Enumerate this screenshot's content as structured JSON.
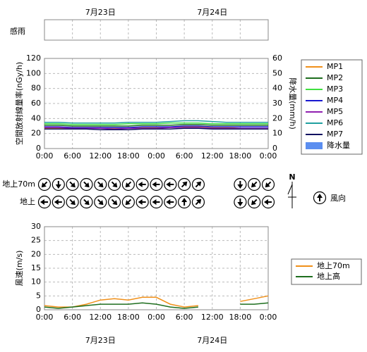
{
  "chart_data": [
    {
      "type": "timeline",
      "label": "感雨",
      "xlim": [
        0,
        48
      ],
      "xticks": [
        0,
        6,
        12,
        18,
        24,
        30,
        36,
        42,
        48
      ],
      "date_labels": [
        {
          "value": 12,
          "label": "7月23日"
        },
        {
          "value": 36,
          "label": "7月24日"
        }
      ]
    },
    {
      "type": "line",
      "ylabel": "空間放射線量率(nGy/h)",
      "y2label": "降水量(mm/h)",
      "xlim": [
        0,
        48
      ],
      "xticks": [
        {
          "value": 0,
          "label": "0:00"
        },
        {
          "value": 6,
          "label": "6:00"
        },
        {
          "value": 12,
          "label": "12:00"
        },
        {
          "value": 18,
          "label": "18:00"
        },
        {
          "value": 24,
          "label": "0:00"
        },
        {
          "value": 30,
          "label": "6:00"
        },
        {
          "value": 36,
          "label": "12:00"
        },
        {
          "value": 42,
          "label": "18:00"
        },
        {
          "value": 48,
          "label": "0:00"
        }
      ],
      "ylim": [
        0,
        120
      ],
      "yticks": [
        0,
        20,
        40,
        60,
        80,
        100,
        120
      ],
      "y2lim": [
        0,
        60
      ],
      "y2ticks": [
        0,
        10,
        20,
        30,
        40,
        50,
        60
      ],
      "grid": true,
      "x": [
        0,
        3,
        6,
        9,
        12,
        15,
        18,
        21,
        24,
        27,
        30,
        33,
        36,
        39,
        42,
        45,
        48
      ],
      "series": [
        {
          "name": "MP1",
          "color": "#f0901a",
          "values": [
            27,
            27,
            28,
            28,
            28,
            27,
            27,
            28,
            28,
            28,
            29,
            29,
            28,
            28,
            27,
            27,
            27
          ]
        },
        {
          "name": "MP2",
          "color": "#1e6e1e",
          "values": [
            31,
            31,
            30,
            30,
            30,
            30,
            30,
            31,
            31,
            31,
            32,
            32,
            31,
            31,
            31,
            31,
            31
          ]
        },
        {
          "name": "MP3",
          "color": "#40e040",
          "values": [
            33,
            33,
            32,
            32,
            32,
            32,
            33,
            33,
            33,
            34,
            34,
            34,
            33,
            33,
            33,
            33,
            33
          ]
        },
        {
          "name": "MP4",
          "color": "#1818d0",
          "values": [
            29,
            29,
            28,
            28,
            28,
            28,
            28,
            29,
            29,
            29,
            30,
            30,
            29,
            29,
            29,
            29,
            29
          ]
        },
        {
          "name": "MP5",
          "color": "#9020b0",
          "values": [
            28,
            28,
            27,
            27,
            27,
            26,
            27,
            27,
            27,
            28,
            28,
            28,
            27,
            27,
            27,
            27,
            27
          ]
        },
        {
          "name": "MP6",
          "color": "#20a0a0",
          "values": [
            35,
            35,
            34,
            34,
            34,
            34,
            35,
            35,
            35,
            36,
            37,
            37,
            36,
            35,
            35,
            35,
            35
          ]
        },
        {
          "name": "MP7",
          "color": "#101060",
          "values": [
            26,
            26,
            26,
            26,
            25,
            25,
            25,
            26,
            26,
            26,
            27,
            27,
            26,
            26,
            26,
            26,
            26
          ]
        },
        {
          "name": "降水量",
          "color": "#5b8ef0",
          "axis": "y2",
          "kind": "bar",
          "values": [
            0,
            0,
            0,
            0,
            0,
            0,
            0,
            0,
            0,
            0,
            0,
            0,
            0,
            0,
            0,
            0,
            0
          ]
        }
      ]
    },
    {
      "type": "wind_direction",
      "xlim": [
        0,
        48
      ],
      "x": [
        0,
        3,
        6,
        9,
        12,
        15,
        18,
        21,
        24,
        27,
        30,
        33,
        36,
        39,
        42,
        45,
        48
      ],
      "compass_label": "N",
      "legend": "風向",
      "series": [
        {
          "name": "地上70m",
          "values": [
            225,
            180,
            135,
            135,
            135,
            135,
            225,
            270,
            270,
            270,
            45,
            45,
            null,
            null,
            180,
            225,
            225
          ]
        },
        {
          "name": "地上",
          "values": [
            270,
            270,
            135,
            135,
            135,
            135,
            225,
            270,
            270,
            270,
            0,
            45,
            null,
            null,
            180,
            225,
            270
          ]
        }
      ]
    },
    {
      "type": "line",
      "ylabel": "風速(m/s)",
      "xlim": [
        0,
        48
      ],
      "xticks": [
        {
          "value": 0,
          "label": "0:00"
        },
        {
          "value": 6,
          "label": "6:00"
        },
        {
          "value": 12,
          "label": "12:00"
        },
        {
          "value": 18,
          "label": "18:00"
        },
        {
          "value": 24,
          "label": "0:00"
        },
        {
          "value": 30,
          "label": "6:00"
        },
        {
          "value": 36,
          "label": "12:00"
        },
        {
          "value": 42,
          "label": "18:00"
        },
        {
          "value": 48,
          "label": "0:00"
        }
      ],
      "ylim": [
        0,
        30
      ],
      "yticks": [
        0,
        5,
        10,
        15,
        20,
        25,
        30
      ],
      "grid": true,
      "x": [
        0,
        3,
        6,
        9,
        12,
        15,
        18,
        21,
        24,
        27,
        30,
        33,
        36,
        39,
        42,
        45,
        48
      ],
      "series": [
        {
          "name": "地上70m",
          "color": "#f0901a",
          "values": [
            1.5,
            1,
            1,
            2,
            3.5,
            4,
            3.5,
            4.5,
            4.5,
            2,
            1,
            1.5,
            null,
            null,
            3,
            4,
            5
          ]
        },
        {
          "name": "地上高",
          "color": "#1e6e1e",
          "values": [
            1,
            0.5,
            1,
            1.5,
            2,
            2,
            2,
            2.5,
            2,
            1,
            0.5,
            1,
            null,
            null,
            2,
            2,
            2.5
          ]
        }
      ]
    }
  ]
}
